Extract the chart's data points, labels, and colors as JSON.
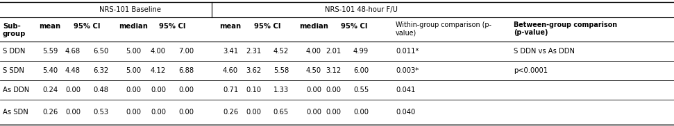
{
  "title_baseline": "NRS-101 Baseline",
  "title_fu": "NRS-101 48-hour F/U",
  "header2": [
    "Sub-\ngroup",
    "mean",
    "95% CI",
    "",
    "median",
    "95% CI",
    "",
    "mean",
    "95% CI",
    "",
    "median",
    "95% CI",
    "",
    "Within-group comparison (p-\nvalue)",
    "Between-group comparison\n(p-value)"
  ],
  "rows": [
    [
      "S DDN",
      "5.59",
      "4.68",
      "6.50",
      "5.00",
      "4.00",
      "7.00",
      "3.41",
      "2.31",
      "4.52",
      "4.00",
      "2.01",
      "4.99",
      "0.011*",
      "S DDN vs As DDN\np<0.0001"
    ],
    [
      "S SDN",
      "5.40",
      "4.48",
      "6.32",
      "5.00",
      "4.12",
      "6.88",
      "4.60",
      "3.62",
      "5.58",
      "4.50",
      "3.12",
      "6.00",
      "0.003*",
      ""
    ],
    [
      "As DDN",
      "0.24",
      "0.00",
      "0.48",
      "0.00",
      "0.00",
      "0.00",
      "0.71",
      "0.10",
      "1.33",
      "0.00",
      "0.00",
      "0.55",
      "0.041",
      ""
    ],
    [
      "As SDN",
      "0.26",
      "0.00",
      "0.53",
      "0.00",
      "0.00",
      "0.00",
      "0.26",
      "0.00",
      "0.65",
      "0.00",
      "0.00",
      "0.00",
      "0.040",
      ""
    ]
  ],
  "bg": "#ffffff",
  "lc": "#000000",
  "tc": "#000000",
  "fs": 7.2
}
